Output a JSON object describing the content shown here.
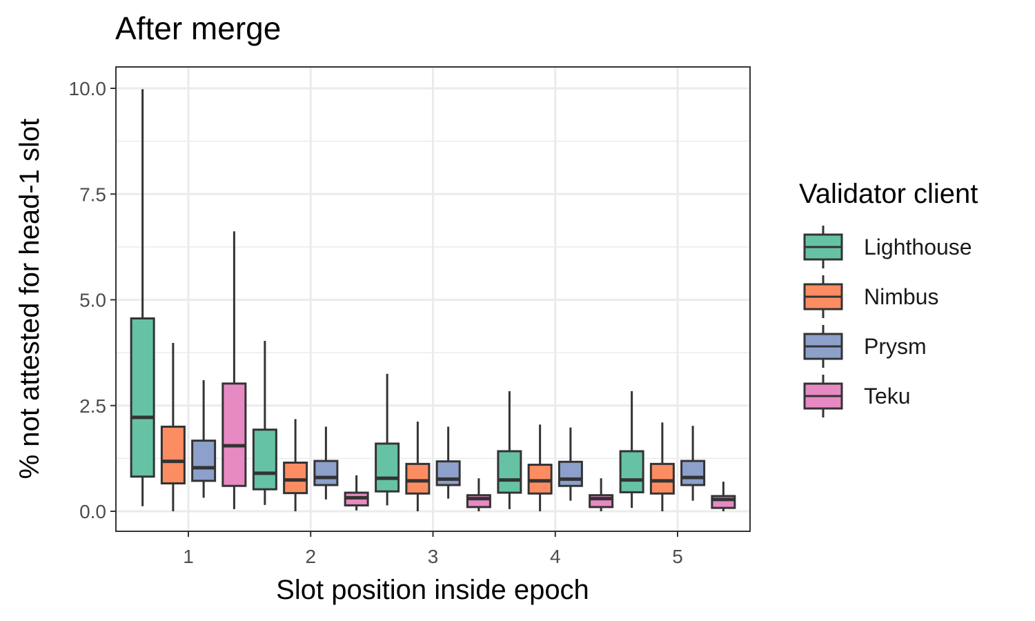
{
  "chart_data": {
    "type": "boxplot",
    "title": "After merge",
    "xlabel": "Slot position inside epoch",
    "ylabel": "% not attested for head-1 slot",
    "categories": [
      "1",
      "2",
      "3",
      "4",
      "5"
    ],
    "yticks": [
      "0.0",
      "2.5",
      "5.0",
      "7.5",
      "10.0"
    ],
    "ylim": [
      -0.5,
      10.5
    ],
    "grid": true,
    "legend": {
      "title": "Validator client",
      "position": "right"
    },
    "series": [
      {
        "name": "Lighthouse",
        "color": "#66c2a5",
        "boxes": [
          {
            "min": 0.12,
            "q1": 0.82,
            "median": 2.22,
            "q3": 4.56,
            "max": 9.98
          },
          {
            "min": 0.15,
            "q1": 0.52,
            "median": 0.9,
            "q3": 1.93,
            "max": 4.03
          },
          {
            "min": 0.14,
            "q1": 0.47,
            "median": 0.78,
            "q3": 1.6,
            "max": 3.25
          },
          {
            "min": 0.05,
            "q1": 0.44,
            "median": 0.74,
            "q3": 1.42,
            "max": 2.84
          },
          {
            "min": 0.08,
            "q1": 0.45,
            "median": 0.74,
            "q3": 1.42,
            "max": 2.84
          }
        ]
      },
      {
        "name": "Nimbus",
        "color": "#fc8d62",
        "boxes": [
          {
            "min": 0.0,
            "q1": 0.66,
            "median": 1.18,
            "q3": 2.0,
            "max": 3.98
          },
          {
            "min": 0.0,
            "q1": 0.43,
            "median": 0.74,
            "q3": 1.15,
            "max": 2.18
          },
          {
            "min": 0.0,
            "q1": 0.42,
            "median": 0.72,
            "q3": 1.12,
            "max": 2.12
          },
          {
            "min": 0.0,
            "q1": 0.42,
            "median": 0.72,
            "q3": 1.1,
            "max": 2.05
          },
          {
            "min": 0.0,
            "q1": 0.42,
            "median": 0.72,
            "q3": 1.12,
            "max": 2.1
          }
        ]
      },
      {
        "name": "Prysm",
        "color": "#8da0cb",
        "boxes": [
          {
            "min": 0.32,
            "q1": 0.72,
            "median": 1.03,
            "q3": 1.67,
            "max": 3.1
          },
          {
            "min": 0.28,
            "q1": 0.62,
            "median": 0.8,
            "q3": 1.19,
            "max": 2.0
          },
          {
            "min": 0.3,
            "q1": 0.62,
            "median": 0.76,
            "q3": 1.18,
            "max": 2.0
          },
          {
            "min": 0.25,
            "q1": 0.6,
            "median": 0.76,
            "q3": 1.17,
            "max": 1.98
          },
          {
            "min": 0.25,
            "q1": 0.62,
            "median": 0.8,
            "q3": 1.19,
            "max": 2.02
          }
        ]
      },
      {
        "name": "Teku",
        "color": "#e78ac3",
        "boxes": [
          {
            "min": 0.05,
            "q1": 0.6,
            "median": 1.55,
            "q3": 3.02,
            "max": 6.62
          },
          {
            "min": 0.02,
            "q1": 0.14,
            "median": 0.32,
            "q3": 0.44,
            "max": 0.85
          },
          {
            "min": 0.0,
            "q1": 0.1,
            "median": 0.3,
            "q3": 0.38,
            "max": 0.78
          },
          {
            "min": 0.0,
            "q1": 0.1,
            "median": 0.3,
            "q3": 0.38,
            "max": 0.78
          },
          {
            "min": 0.0,
            "q1": 0.08,
            "median": 0.28,
            "q3": 0.36,
            "max": 0.7
          }
        ]
      }
    ]
  }
}
